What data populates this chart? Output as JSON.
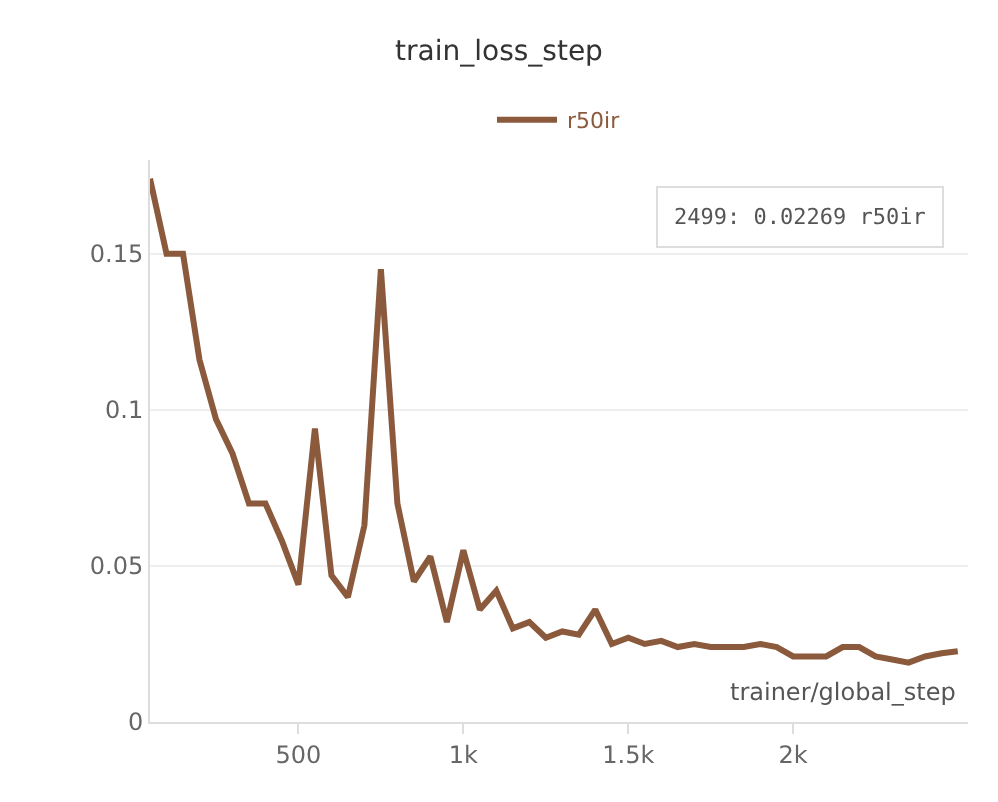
{
  "chart_data": {
    "type": "line",
    "title": "train_loss_step",
    "xlabel": "trainer/global_step",
    "x": [
      50,
      100,
      150,
      200,
      250,
      300,
      350,
      400,
      450,
      500,
      550,
      600,
      650,
      700,
      750,
      800,
      850,
      900,
      950,
      1000,
      1050,
      1100,
      1150,
      1200,
      1250,
      1300,
      1350,
      1400,
      1450,
      1500,
      1550,
      1600,
      1650,
      1700,
      1750,
      1800,
      1850,
      1900,
      1950,
      2000,
      2050,
      2100,
      2150,
      2200,
      2250,
      2300,
      2350,
      2400,
      2450,
      2499
    ],
    "series": [
      {
        "name": "r50ir",
        "color": "#8b5a3c",
        "values": [
          0.174,
          0.15,
          0.15,
          0.116,
          0.097,
          0.086,
          0.07,
          0.07,
          0.058,
          0.044,
          0.094,
          0.047,
          0.04,
          0.063,
          0.145,
          0.07,
          0.045,
          0.053,
          0.032,
          0.055,
          0.036,
          0.042,
          0.03,
          0.032,
          0.027,
          0.029,
          0.028,
          0.036,
          0.025,
          0.027,
          0.025,
          0.026,
          0.024,
          0.025,
          0.024,
          0.024,
          0.024,
          0.025,
          0.024,
          0.021,
          0.021,
          0.021,
          0.024,
          0.024,
          0.021,
          0.02,
          0.019,
          0.021,
          0.022,
          0.02269
        ]
      }
    ],
    "xlim": [
      50,
      2530
    ],
    "ylim": [
      0,
      0.18
    ],
    "xticks": [
      {
        "value": 500,
        "label": "500"
      },
      {
        "value": 1000,
        "label": "1k"
      },
      {
        "value": 1500,
        "label": "1.5k"
      },
      {
        "value": 2000,
        "label": "2k"
      }
    ],
    "yticks": [
      0,
      0.05,
      0.1,
      0.15
    ],
    "grid": "y",
    "legend": "top",
    "marker": "none",
    "line_style": "solid",
    "annotations": [
      "2499: 0.02269 r50ir"
    ]
  }
}
